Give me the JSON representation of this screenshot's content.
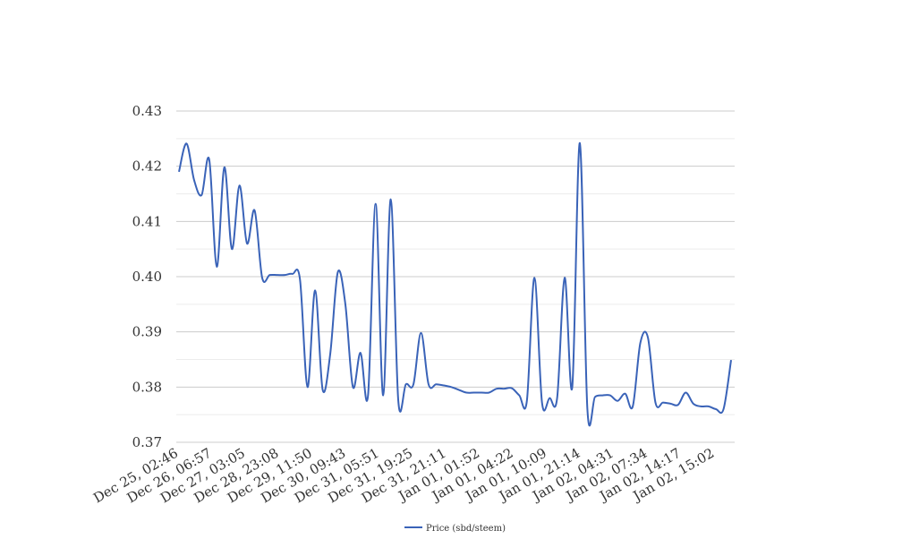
{
  "chart_data": {
    "type": "line",
    "title": "",
    "xlabel": "",
    "ylabel": "",
    "ylim": [
      0.37,
      0.43
    ],
    "y_ticks": [
      "0.37",
      "0.38",
      "0.39",
      "0.40",
      "0.41",
      "0.42",
      "0.43"
    ],
    "x_tick_labels": [
      "Dec 25, 02:46",
      "Dec 26, 06:57",
      "Dec 27, 03:05",
      "Dec 28, 23:08",
      "Dec 29, 11:50",
      "Dec 30, 09:43",
      "Dec 31, 05:51",
      "Dec 31, 19:25",
      "Dec 31, 21:11",
      "Jan 01, 01:52",
      "Jan 01, 04:22",
      "Jan 01, 10:09",
      "Jan 01, 21:14",
      "Jan 02, 04:31",
      "Jan 02, 07:34",
      "Jan 02, 14:17",
      "Jan 02, 15:02"
    ],
    "grid": true,
    "legend_position": "bottom-center",
    "series": [
      {
        "name": "Price (sbd/steem)",
        "color": "#3a63b8",
        "values": [
          0.419,
          0.4241,
          0.4175,
          0.4148,
          0.4212,
          0.4018,
          0.4198,
          0.405,
          0.4165,
          0.406,
          0.412,
          0.3998,
          0.4003,
          0.4003,
          0.4003,
          0.4005,
          0.3995,
          0.38,
          0.3975,
          0.3795,
          0.386,
          0.4008,
          0.395,
          0.38,
          0.3862,
          0.3785,
          0.4132,
          0.3785,
          0.414,
          0.3775,
          0.3805,
          0.3805,
          0.3898,
          0.3805,
          0.3805,
          0.3803,
          0.38,
          0.3795,
          0.379,
          0.379,
          0.379,
          0.379,
          0.3797,
          0.3797,
          0.3798,
          0.3785,
          0.3775,
          0.3998,
          0.3772,
          0.378,
          0.378,
          0.3998,
          0.38,
          0.4242,
          0.376,
          0.3782,
          0.3785,
          0.3785,
          0.3775,
          0.3788,
          0.3765,
          0.388,
          0.389,
          0.3772,
          0.3772,
          0.377,
          0.3768,
          0.379,
          0.377,
          0.3765,
          0.3765,
          0.376,
          0.376,
          0.3849
        ]
      }
    ]
  }
}
